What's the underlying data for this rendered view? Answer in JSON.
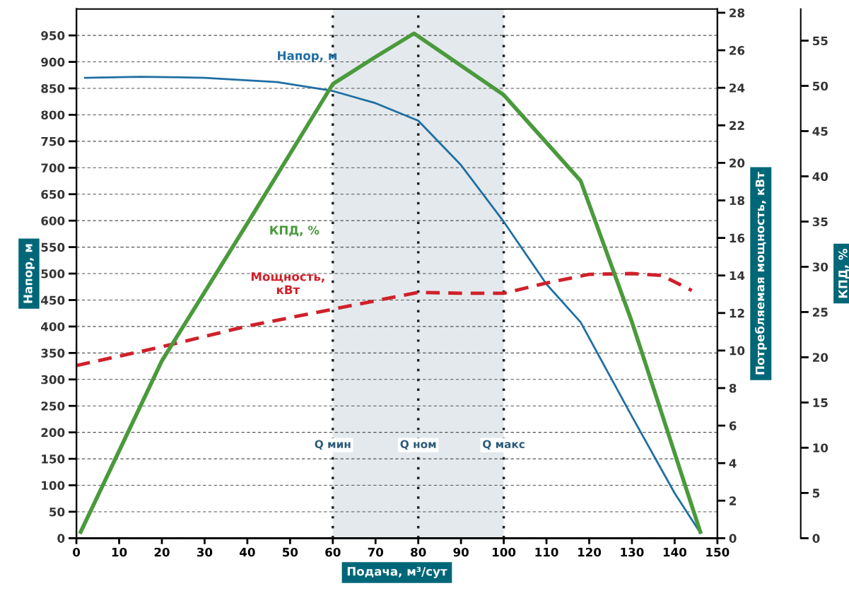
{
  "chart_data": {
    "type": "line",
    "xlabel": "Подача, м³/сут",
    "ylabel": "Напор, м",
    "y2label": "Потребляемая мощность, кВт",
    "y3label": "КПД, %",
    "xlim": [
      0,
      150
    ],
    "xticks": [
      0,
      10,
      20,
      30,
      40,
      50,
      60,
      70,
      80,
      90,
      100,
      110,
      120,
      130,
      140,
      150
    ],
    "ylim": [
      0,
      1000
    ],
    "yticks": [
      0,
      50,
      100,
      150,
      200,
      250,
      300,
      350,
      400,
      450,
      500,
      550,
      600,
      650,
      700,
      750,
      800,
      850,
      900,
      950
    ],
    "y2lim": [
      0,
      28.2
    ],
    "y2ticks": [
      0,
      2,
      4,
      6,
      8,
      10,
      12,
      14,
      16,
      18,
      20,
      22,
      24,
      26,
      28
    ],
    "y3lim": [
      0,
      58.5
    ],
    "y3ticks": [
      0,
      5,
      10,
      15,
      20,
      25,
      30,
      35,
      40,
      45,
      50,
      55
    ],
    "grid": "y",
    "series": [
      {
        "name": "Напор, м",
        "color": "#1f6fa3",
        "line_style": "solid",
        "x": [
          2,
          15,
          30,
          47,
          60,
          70,
          80,
          90,
          100,
          110,
          118,
          130,
          140,
          146
        ],
        "values": [
          870,
          872,
          870,
          862,
          845,
          822,
          789,
          705,
          598,
          480,
          408,
          230,
          85,
          10
        ]
      },
      {
        "name": "КПД, %",
        "color": "#4a9a3c",
        "line_style": "solid",
        "axis": "y3",
        "x": [
          1,
          20,
          40,
          60,
          70,
          79,
          100,
          118,
          130,
          146
        ],
        "values": [
          0.7,
          19.6,
          34.8,
          50.2,
          53.2,
          55.8,
          49,
          39.5,
          23.9,
          0.7
        ]
      },
      {
        "name": "Мощность, кВт",
        "color": "#d0202a",
        "line_style": "dashed",
        "axis": "y2",
        "x": [
          0,
          20,
          40,
          60,
          80,
          90,
          100,
          110,
          120,
          130,
          137,
          144
        ],
        "values": [
          9.2,
          10.2,
          11.3,
          12.2,
          13.1,
          13.05,
          13.05,
          13.6,
          14.06,
          14.1,
          14.0,
          13.2
        ]
      }
    ],
    "bands": [
      {
        "axis": "x",
        "from": 60,
        "to": 100,
        "color": "#e3e9ec"
      }
    ],
    "ref_lines": [
      {
        "axis": "x",
        "value": 60,
        "label": "Q мин",
        "line_style": "dotted",
        "color": "#222222"
      },
      {
        "axis": "x",
        "value": 80,
        "label": "Q ном",
        "line_style": "dotted",
        "color": "#222222"
      },
      {
        "axis": "x",
        "value": 100,
        "label": "Q макс",
        "line_style": "dotted",
        "color": "#222222"
      }
    ]
  }
}
